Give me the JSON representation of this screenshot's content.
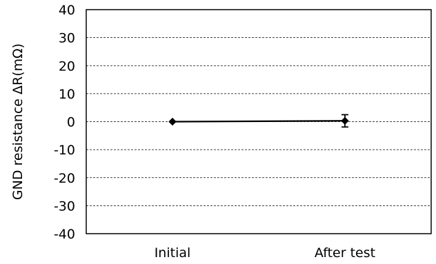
{
  "chart_data": {
    "type": "line",
    "categories": [
      "Initial",
      "After test"
    ],
    "series": [
      {
        "values": [
          0,
          0.3
        ],
        "error": [
          0,
          2.2
        ],
        "color": "#000000",
        "marker": "diamond"
      }
    ],
    "ylabel": "GND resistance ΔR(mΩ)",
    "xlabel": "",
    "ylim": [
      -40,
      40
    ],
    "yticks": [
      "40",
      "30",
      "20",
      "10",
      "0",
      "-10",
      "-20",
      "-30",
      "-40"
    ],
    "grid": true,
    "grid_style": "dashed",
    "legend": false
  }
}
